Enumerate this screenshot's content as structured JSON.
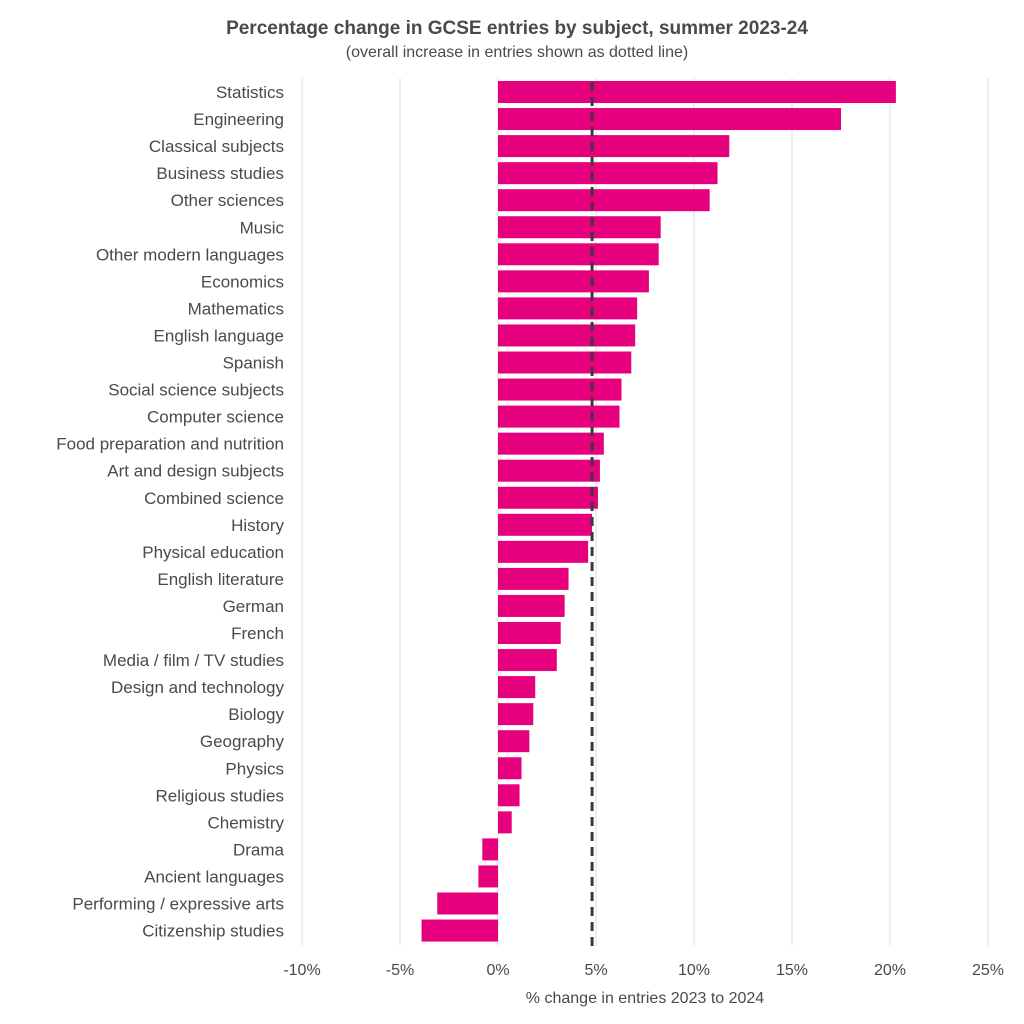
{
  "chart_data": {
    "type": "bar",
    "orientation": "horizontal",
    "title": "Percentage change in GCSE entries by subject, summer 2023-24",
    "subtitle": "(overall increase in entries shown as dotted line)",
    "xlabel": "% change in entries 2023 to 2024",
    "ylabel": "",
    "xlim": [
      -10,
      25
    ],
    "xticks": [
      -10,
      -5,
      0,
      5,
      10,
      15,
      20,
      25
    ],
    "xtick_labels": [
      "-10%",
      "-5%",
      "0%",
      "5%",
      "10%",
      "15%",
      "20%",
      "25%"
    ],
    "grid": true,
    "reference_line": {
      "value": 4.8,
      "style": "dashed"
    },
    "bar_color": "#e6007e",
    "reference_line_color": "#3a3a3a",
    "categories": [
      "Statistics",
      "Engineering",
      "Classical subjects",
      "Business studies",
      "Other sciences",
      "Music",
      "Other modern languages",
      "Economics",
      "Mathematics",
      "English language",
      "Spanish",
      "Social science subjects",
      "Computer science",
      "Food preparation and nutrition",
      "Art and design subjects",
      "Combined science",
      "History",
      "Physical education",
      "English literature",
      "German",
      "French",
      "Media / film / TV studies",
      "Design and technology",
      "Biology",
      "Geography",
      "Physics",
      "Religious studies",
      "Chemistry",
      "Drama",
      "Ancient languages",
      "Performing / expressive arts",
      "Citizenship studies"
    ],
    "values": [
      20.3,
      17.5,
      11.8,
      11.2,
      10.8,
      8.3,
      8.2,
      7.7,
      7.1,
      7.0,
      6.8,
      6.3,
      6.2,
      5.4,
      5.2,
      5.1,
      4.8,
      4.6,
      3.6,
      3.4,
      3.2,
      3.0,
      1.9,
      1.8,
      1.6,
      1.2,
      1.1,
      0.7,
      -0.8,
      -1.0,
      -3.1,
      -3.9
    ]
  }
}
